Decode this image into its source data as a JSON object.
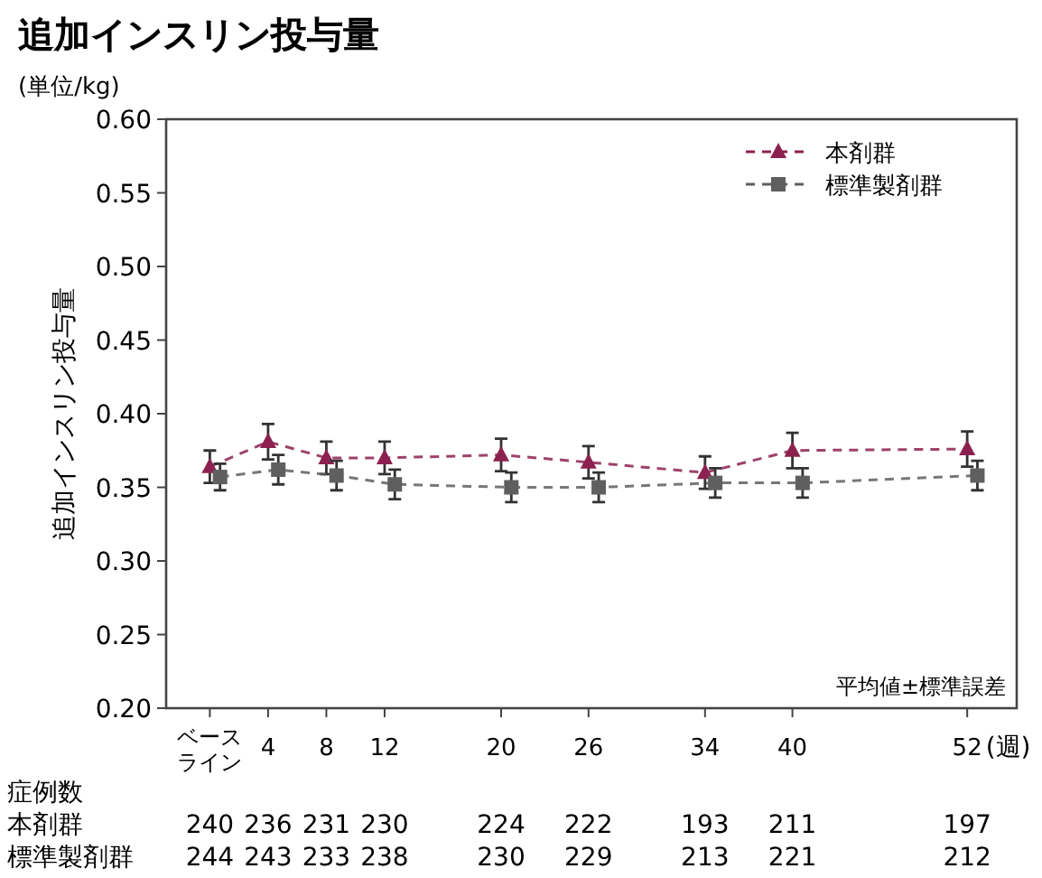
{
  "chart_data": {
    "type": "line",
    "title": "追加インスリン投与量",
    "ylabel": "追加インスリン投与量",
    "xlabel": "(週)",
    "xlim": [
      -3,
      55.4
    ],
    "ylim": [
      0.2,
      0.6
    ],
    "xticks": [
      {
        "value": 0,
        "label": "ベースライン"
      },
      4,
      8,
      12,
      20,
      26,
      34,
      40,
      52
    ],
    "yticks": [
      {
        "value": 0.2,
        "label": "0.20"
      },
      {
        "value": 0.25,
        "label": "0.25"
      },
      {
        "value": 0.3,
        "label": "0.30"
      },
      {
        "value": 0.35,
        "label": "0.35"
      },
      {
        "value": 0.4,
        "label": "0.40"
      },
      {
        "value": 0.45,
        "label": "0.45"
      },
      {
        "value": 0.5,
        "label": "0.50"
      },
      {
        "value": 0.55,
        "label": "0.55"
      },
      {
        "value": 0.6,
        "label": "0.60"
      }
    ],
    "legend": "top right",
    "line_style": "dashed",
    "series": [
      {
        "name": "本剤群",
        "color": "#8c2150",
        "marker": "triangle",
        "x": [
          0,
          4,
          8,
          12,
          20,
          26,
          34,
          40,
          52
        ],
        "values": [
          0.364,
          0.381,
          0.37,
          0.37,
          0.372,
          0.367,
          0.36,
          0.375,
          0.376
        ],
        "errors": [
          0.011,
          0.012,
          0.011,
          0.011,
          0.011,
          0.011,
          0.011,
          0.012,
          0.012
        ]
      },
      {
        "name": "標準製剤群",
        "color": "#5f5f5f",
        "marker": "square",
        "x": [
          0.7,
          4.7,
          8.7,
          12.7,
          20.7,
          26.7,
          34.7,
          40.7,
          52.7
        ],
        "values": [
          0.357,
          0.362,
          0.358,
          0.352,
          0.35,
          0.35,
          0.353,
          0.353,
          0.358
        ],
        "errors": [
          0.009,
          0.01,
          0.01,
          0.01,
          0.01,
          0.01,
          0.01,
          0.01,
          0.01
        ]
      }
    ],
    "annotations": [
      "(単位/kg)",
      "平均値±標準誤差",
      "症例数",
      "本剤群",
      "標準製剤群",
      "240",
      "236",
      "231",
      "230",
      "224",
      "222",
      "193",
      "211",
      "197",
      "244",
      "243",
      "233",
      "238",
      "230",
      "229",
      "213",
      "221",
      "212"
    ]
  }
}
